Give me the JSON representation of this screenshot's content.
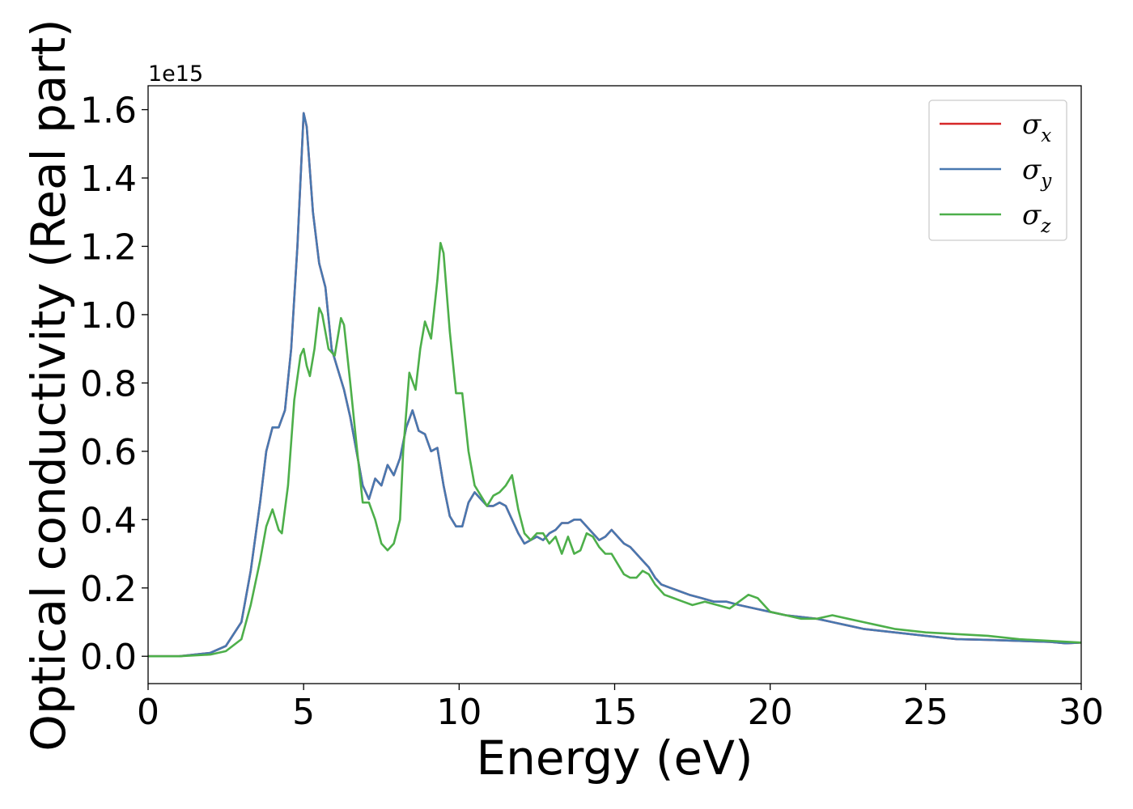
{
  "chart_data": {
    "type": "line",
    "title": "",
    "xlabel": "Energy (eV)",
    "ylabel": "Optical conductivity (Real part)",
    "y_offset_label": "1e15",
    "y_scale": 1000000000000000.0,
    "xlim": [
      0,
      30
    ],
    "ylim": [
      -0.08,
      1.67
    ],
    "xticks": [
      0,
      5,
      10,
      15,
      20,
      25,
      30
    ],
    "yticks": [
      0.0,
      0.2,
      0.4,
      0.6,
      0.8,
      1.0,
      1.2,
      1.4,
      1.6
    ],
    "xtick_labels": [
      "0",
      "5",
      "10",
      "15",
      "20",
      "25",
      "30"
    ],
    "ytick_labels": [
      "0.0",
      "0.2",
      "0.4",
      "0.6",
      "0.8",
      "1.0",
      "1.2",
      "1.4",
      "1.6"
    ],
    "grid": false,
    "legend_position": "top-right",
    "series": [
      {
        "name": "σx",
        "symbol": "σ",
        "subscript": "x",
        "color": "#d62728",
        "points": [
          [
            0,
            0.0
          ],
          [
            1,
            0.0
          ],
          [
            2,
            0.01
          ],
          [
            2.5,
            0.03
          ],
          [
            3,
            0.1
          ],
          [
            3.3,
            0.25
          ],
          [
            3.6,
            0.45
          ],
          [
            3.8,
            0.6
          ],
          [
            4,
            0.67
          ],
          [
            4.2,
            0.67
          ],
          [
            4.4,
            0.72
          ],
          [
            4.6,
            0.9
          ],
          [
            4.8,
            1.2
          ],
          [
            5.0,
            1.59
          ],
          [
            5.1,
            1.55
          ],
          [
            5.3,
            1.3
          ],
          [
            5.5,
            1.15
          ],
          [
            5.7,
            1.08
          ],
          [
            5.9,
            0.9
          ],
          [
            6.1,
            0.84
          ],
          [
            6.3,
            0.78
          ],
          [
            6.5,
            0.7
          ],
          [
            6.7,
            0.6
          ],
          [
            6.9,
            0.5
          ],
          [
            7.1,
            0.46
          ],
          [
            7.3,
            0.52
          ],
          [
            7.5,
            0.5
          ],
          [
            7.7,
            0.56
          ],
          [
            7.9,
            0.53
          ],
          [
            8.1,
            0.58
          ],
          [
            8.3,
            0.67
          ],
          [
            8.5,
            0.72
          ],
          [
            8.7,
            0.66
          ],
          [
            8.9,
            0.65
          ],
          [
            9.1,
            0.6
          ],
          [
            9.3,
            0.61
          ],
          [
            9.5,
            0.5
          ],
          [
            9.7,
            0.41
          ],
          [
            9.9,
            0.38
          ],
          [
            10.1,
            0.38
          ],
          [
            10.3,
            0.45
          ],
          [
            10.5,
            0.48
          ],
          [
            10.7,
            0.46
          ],
          [
            10.9,
            0.44
          ],
          [
            11.1,
            0.44
          ],
          [
            11.3,
            0.45
          ],
          [
            11.5,
            0.44
          ],
          [
            11.7,
            0.4
          ],
          [
            11.9,
            0.36
          ],
          [
            12.1,
            0.33
          ],
          [
            12.3,
            0.34
          ],
          [
            12.5,
            0.35
          ],
          [
            12.7,
            0.34
          ],
          [
            12.9,
            0.36
          ],
          [
            13.1,
            0.37
          ],
          [
            13.3,
            0.39
          ],
          [
            13.5,
            0.39
          ],
          [
            13.7,
            0.4
          ],
          [
            13.9,
            0.4
          ],
          [
            14.1,
            0.38
          ],
          [
            14.3,
            0.36
          ],
          [
            14.5,
            0.34
          ],
          [
            14.7,
            0.35
          ],
          [
            14.9,
            0.37
          ],
          [
            15.1,
            0.35
          ],
          [
            15.3,
            0.33
          ],
          [
            15.5,
            0.32
          ],
          [
            15.7,
            0.3
          ],
          [
            15.9,
            0.28
          ],
          [
            16.1,
            0.26
          ],
          [
            16.3,
            0.23
          ],
          [
            16.5,
            0.21
          ],
          [
            16.8,
            0.2
          ],
          [
            17.1,
            0.19
          ],
          [
            17.4,
            0.18
          ],
          [
            17.8,
            0.17
          ],
          [
            18.2,
            0.16
          ],
          [
            18.6,
            0.16
          ],
          [
            19.0,
            0.15
          ],
          [
            19.5,
            0.14
          ],
          [
            20,
            0.13
          ],
          [
            20.5,
            0.12
          ],
          [
            21,
            0.115
          ],
          [
            21.5,
            0.11
          ],
          [
            22,
            0.1
          ],
          [
            22.5,
            0.09
          ],
          [
            23,
            0.08
          ],
          [
            24,
            0.07
          ],
          [
            25,
            0.06
          ],
          [
            26,
            0.05
          ],
          [
            27,
            0.048
          ],
          [
            28,
            0.045
          ],
          [
            29,
            0.042
          ],
          [
            29.5,
            0.038
          ],
          [
            30,
            0.04
          ]
        ]
      },
      {
        "name": "σy",
        "symbol": "σ",
        "subscript": "y",
        "color": "#4878b0",
        "points": [
          [
            0,
            0.0
          ],
          [
            1,
            0.0
          ],
          [
            2,
            0.01
          ],
          [
            2.5,
            0.03
          ],
          [
            3,
            0.1
          ],
          [
            3.3,
            0.25
          ],
          [
            3.6,
            0.45
          ],
          [
            3.8,
            0.6
          ],
          [
            4,
            0.67
          ],
          [
            4.2,
            0.67
          ],
          [
            4.4,
            0.72
          ],
          [
            4.6,
            0.9
          ],
          [
            4.8,
            1.2
          ],
          [
            5.0,
            1.59
          ],
          [
            5.1,
            1.55
          ],
          [
            5.3,
            1.3
          ],
          [
            5.5,
            1.15
          ],
          [
            5.7,
            1.08
          ],
          [
            5.9,
            0.9
          ],
          [
            6.1,
            0.84
          ],
          [
            6.3,
            0.78
          ],
          [
            6.5,
            0.7
          ],
          [
            6.7,
            0.6
          ],
          [
            6.9,
            0.5
          ],
          [
            7.1,
            0.46
          ],
          [
            7.3,
            0.52
          ],
          [
            7.5,
            0.5
          ],
          [
            7.7,
            0.56
          ],
          [
            7.9,
            0.53
          ],
          [
            8.1,
            0.58
          ],
          [
            8.3,
            0.67
          ],
          [
            8.5,
            0.72
          ],
          [
            8.7,
            0.66
          ],
          [
            8.9,
            0.65
          ],
          [
            9.1,
            0.6
          ],
          [
            9.3,
            0.61
          ],
          [
            9.5,
            0.5
          ],
          [
            9.7,
            0.41
          ],
          [
            9.9,
            0.38
          ],
          [
            10.1,
            0.38
          ],
          [
            10.3,
            0.45
          ],
          [
            10.5,
            0.48
          ],
          [
            10.7,
            0.46
          ],
          [
            10.9,
            0.44
          ],
          [
            11.1,
            0.44
          ],
          [
            11.3,
            0.45
          ],
          [
            11.5,
            0.44
          ],
          [
            11.7,
            0.4
          ],
          [
            11.9,
            0.36
          ],
          [
            12.1,
            0.33
          ],
          [
            12.3,
            0.34
          ],
          [
            12.5,
            0.35
          ],
          [
            12.7,
            0.34
          ],
          [
            12.9,
            0.36
          ],
          [
            13.1,
            0.37
          ],
          [
            13.3,
            0.39
          ],
          [
            13.5,
            0.39
          ],
          [
            13.7,
            0.4
          ],
          [
            13.9,
            0.4
          ],
          [
            14.1,
            0.38
          ],
          [
            14.3,
            0.36
          ],
          [
            14.5,
            0.34
          ],
          [
            14.7,
            0.35
          ],
          [
            14.9,
            0.37
          ],
          [
            15.1,
            0.35
          ],
          [
            15.3,
            0.33
          ],
          [
            15.5,
            0.32
          ],
          [
            15.7,
            0.3
          ],
          [
            15.9,
            0.28
          ],
          [
            16.1,
            0.26
          ],
          [
            16.3,
            0.23
          ],
          [
            16.5,
            0.21
          ],
          [
            16.8,
            0.2
          ],
          [
            17.1,
            0.19
          ],
          [
            17.4,
            0.18
          ],
          [
            17.8,
            0.17
          ],
          [
            18.2,
            0.16
          ],
          [
            18.6,
            0.16
          ],
          [
            19.0,
            0.15
          ],
          [
            19.5,
            0.14
          ],
          [
            20,
            0.13
          ],
          [
            20.5,
            0.12
          ],
          [
            21,
            0.115
          ],
          [
            21.5,
            0.11
          ],
          [
            22,
            0.1
          ],
          [
            22.5,
            0.09
          ],
          [
            23,
            0.08
          ],
          [
            24,
            0.07
          ],
          [
            25,
            0.06
          ],
          [
            26,
            0.05
          ],
          [
            27,
            0.048
          ],
          [
            28,
            0.045
          ],
          [
            29,
            0.042
          ],
          [
            29.5,
            0.038
          ],
          [
            30,
            0.04
          ]
        ]
      },
      {
        "name": "σz",
        "symbol": "σ",
        "subscript": "z",
        "color": "#4daf4a",
        "points": [
          [
            0,
            0.0
          ],
          [
            1,
            0.0
          ],
          [
            2,
            0.005
          ],
          [
            2.5,
            0.015
          ],
          [
            3,
            0.05
          ],
          [
            3.3,
            0.15
          ],
          [
            3.6,
            0.28
          ],
          [
            3.8,
            0.38
          ],
          [
            4,
            0.43
          ],
          [
            4.2,
            0.37
          ],
          [
            4.3,
            0.36
          ],
          [
            4.5,
            0.5
          ],
          [
            4.7,
            0.75
          ],
          [
            4.9,
            0.88
          ],
          [
            5.0,
            0.9
          ],
          [
            5.1,
            0.85
          ],
          [
            5.2,
            0.82
          ],
          [
            5.35,
            0.9
          ],
          [
            5.5,
            1.02
          ],
          [
            5.6,
            1.0
          ],
          [
            5.8,
            0.9
          ],
          [
            6.0,
            0.88
          ],
          [
            6.2,
            0.99
          ],
          [
            6.3,
            0.97
          ],
          [
            6.5,
            0.8
          ],
          [
            6.7,
            0.62
          ],
          [
            6.9,
            0.45
          ],
          [
            7.1,
            0.45
          ],
          [
            7.3,
            0.4
          ],
          [
            7.5,
            0.33
          ],
          [
            7.7,
            0.31
          ],
          [
            7.9,
            0.33
          ],
          [
            8.1,
            0.4
          ],
          [
            8.2,
            0.6
          ],
          [
            8.4,
            0.83
          ],
          [
            8.6,
            0.78
          ],
          [
            8.75,
            0.9
          ],
          [
            8.9,
            0.98
          ],
          [
            9.1,
            0.93
          ],
          [
            9.3,
            1.1
          ],
          [
            9.4,
            1.21
          ],
          [
            9.5,
            1.18
          ],
          [
            9.7,
            0.95
          ],
          [
            9.9,
            0.77
          ],
          [
            10.1,
            0.77
          ],
          [
            10.3,
            0.6
          ],
          [
            10.5,
            0.5
          ],
          [
            10.7,
            0.47
          ],
          [
            10.9,
            0.44
          ],
          [
            11.1,
            0.47
          ],
          [
            11.3,
            0.48
          ],
          [
            11.5,
            0.5
          ],
          [
            11.7,
            0.53
          ],
          [
            11.9,
            0.43
          ],
          [
            12.1,
            0.36
          ],
          [
            12.3,
            0.34
          ],
          [
            12.5,
            0.36
          ],
          [
            12.7,
            0.36
          ],
          [
            12.9,
            0.33
          ],
          [
            13.1,
            0.35
          ],
          [
            13.3,
            0.3
          ],
          [
            13.5,
            0.35
          ],
          [
            13.7,
            0.3
          ],
          [
            13.9,
            0.31
          ],
          [
            14.1,
            0.36
          ],
          [
            14.3,
            0.35
          ],
          [
            14.5,
            0.32
          ],
          [
            14.7,
            0.3
          ],
          [
            14.9,
            0.3
          ],
          [
            15.1,
            0.27
          ],
          [
            15.3,
            0.24
          ],
          [
            15.5,
            0.23
          ],
          [
            15.7,
            0.23
          ],
          [
            15.9,
            0.25
          ],
          [
            16.1,
            0.24
          ],
          [
            16.3,
            0.21
          ],
          [
            16.6,
            0.18
          ],
          [
            16.9,
            0.17
          ],
          [
            17.2,
            0.16
          ],
          [
            17.5,
            0.15
          ],
          [
            17.9,
            0.16
          ],
          [
            18.3,
            0.15
          ],
          [
            18.7,
            0.14
          ],
          [
            19.0,
            0.16
          ],
          [
            19.3,
            0.18
          ],
          [
            19.6,
            0.17
          ],
          [
            20.0,
            0.13
          ],
          [
            20.5,
            0.12
          ],
          [
            21.0,
            0.11
          ],
          [
            21.5,
            0.11
          ],
          [
            22.0,
            0.12
          ],
          [
            22.5,
            0.11
          ],
          [
            23.0,
            0.1
          ],
          [
            23.5,
            0.09
          ],
          [
            24.0,
            0.08
          ],
          [
            25,
            0.07
          ],
          [
            26,
            0.065
          ],
          [
            27,
            0.06
          ],
          [
            28,
            0.05
          ],
          [
            29,
            0.045
          ],
          [
            30,
            0.04
          ]
        ]
      }
    ]
  }
}
